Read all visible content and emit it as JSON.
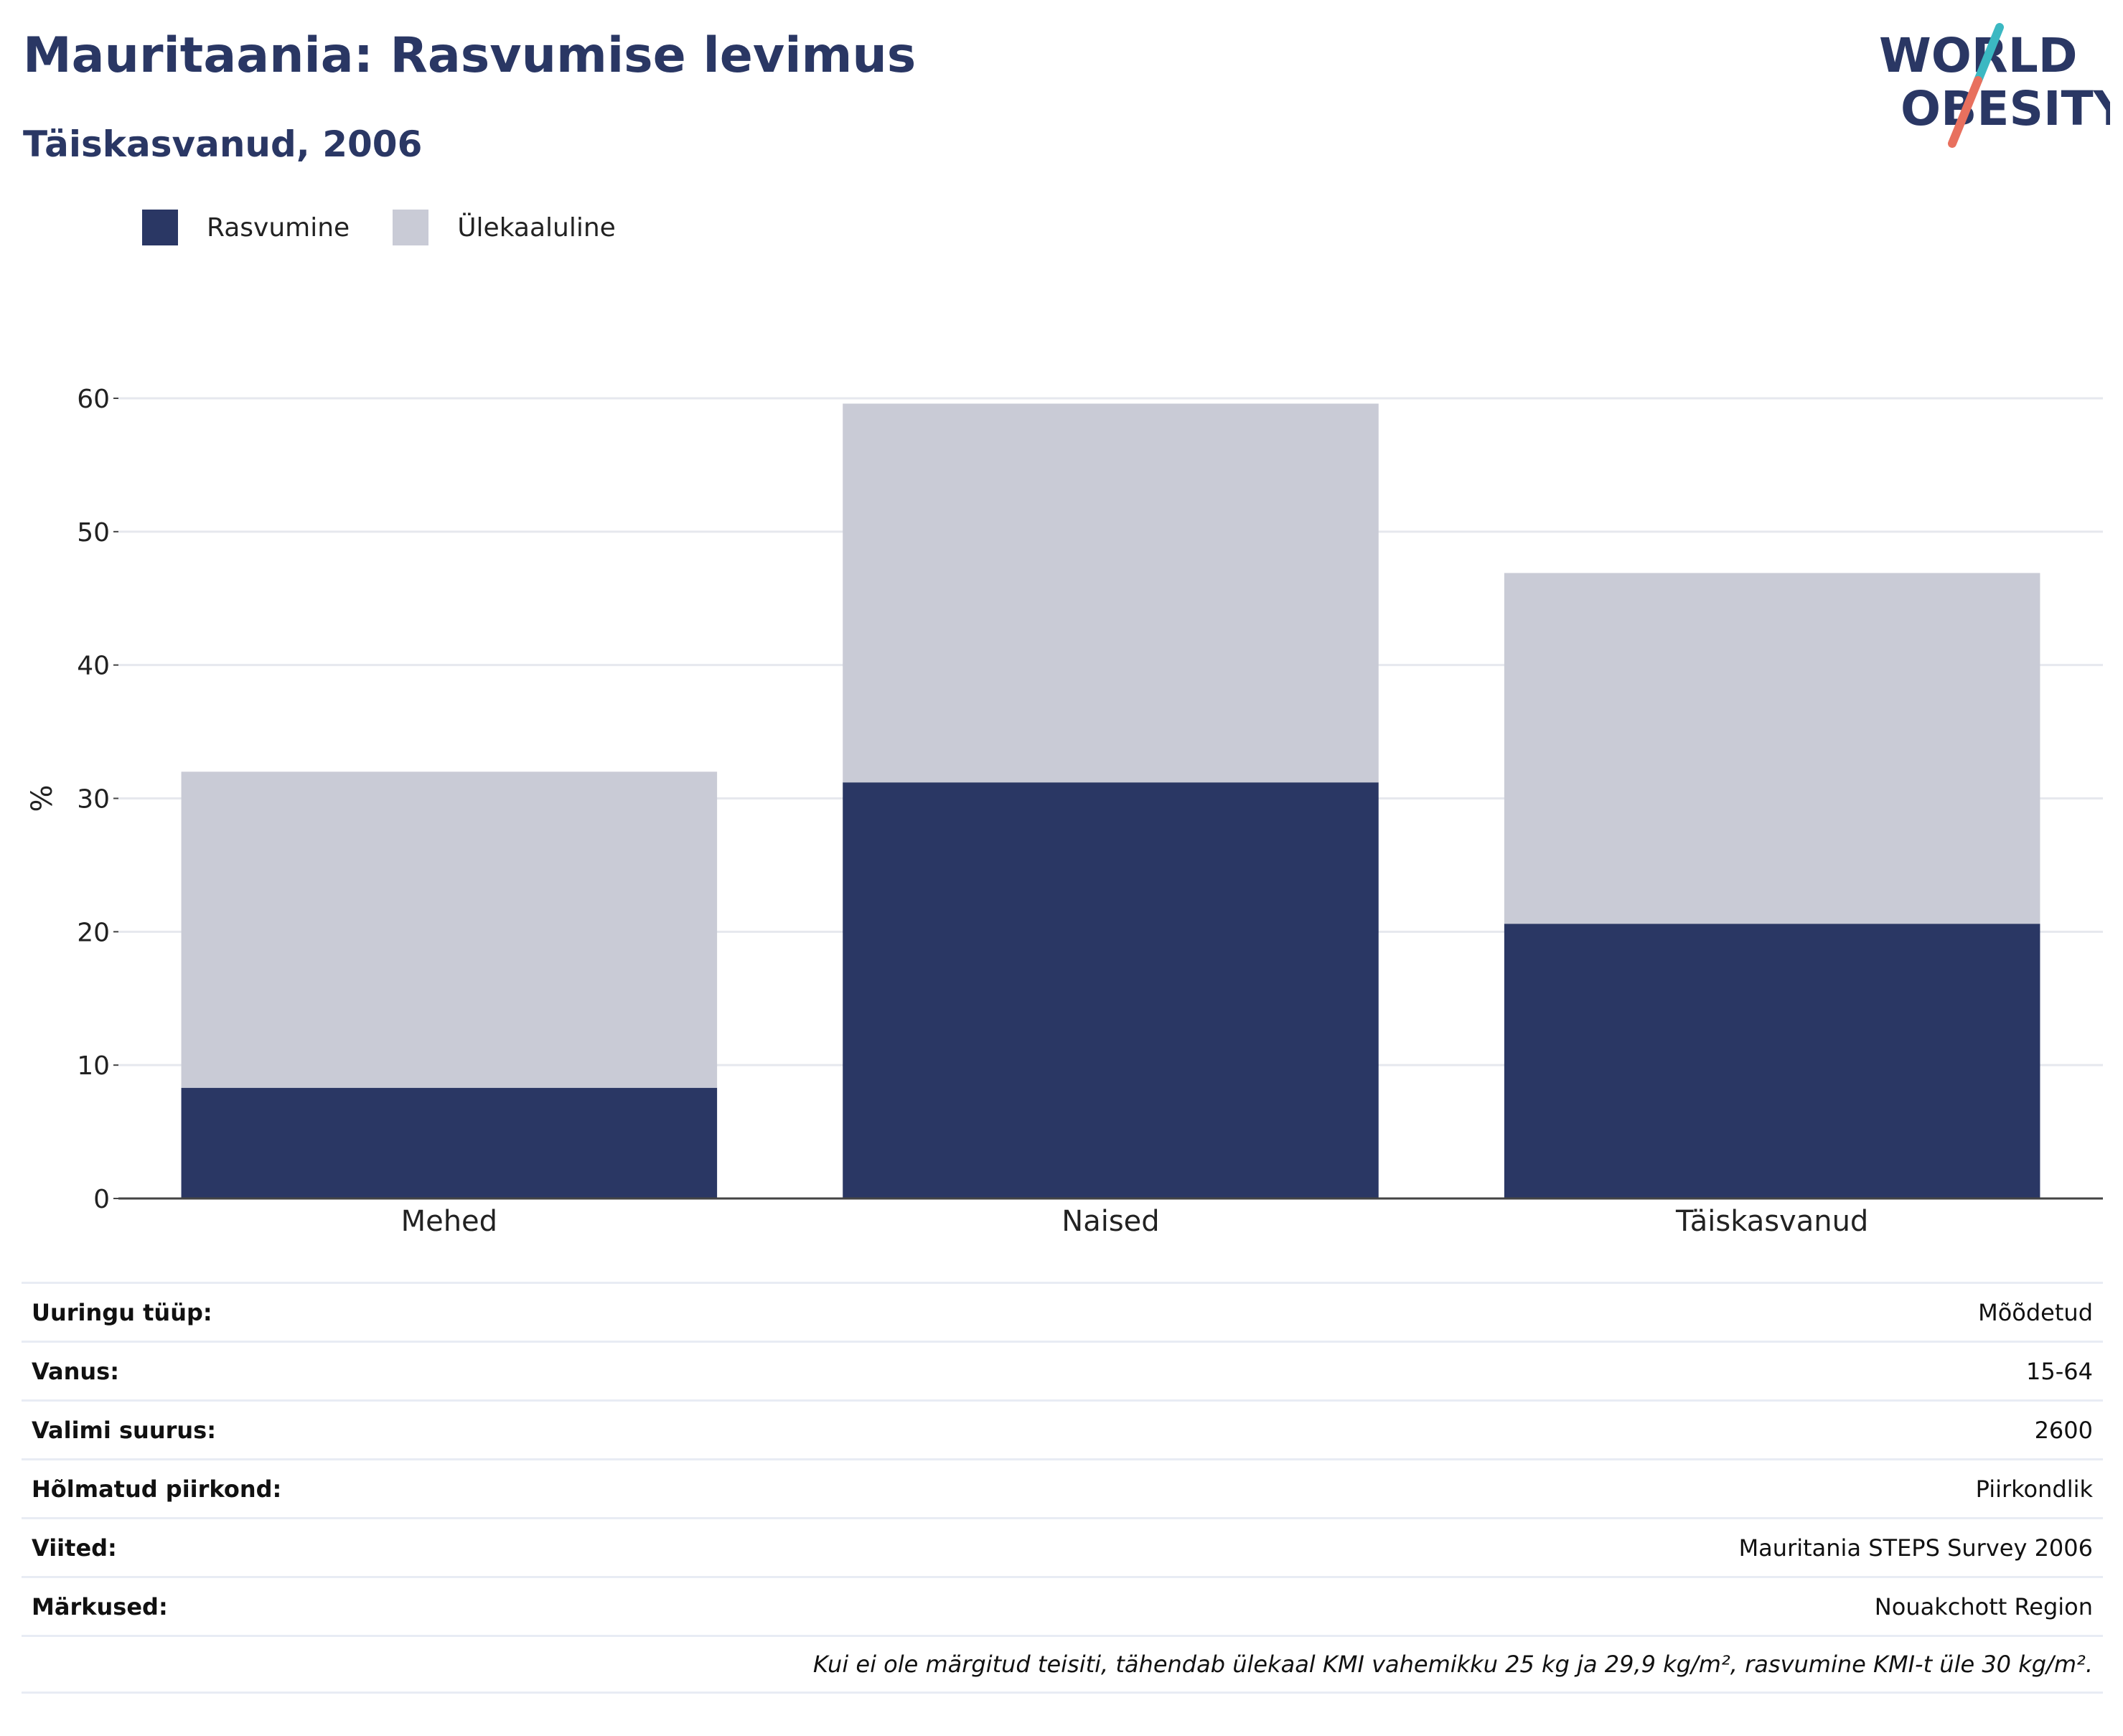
{
  "title": "Mauritaania: Rasvumise levimus",
  "subtitle": "Täiskasvanud, 2006",
  "logo": {
    "line1": "WORLD",
    "line2": "OBESITY",
    "accent_teal": "#3bb8c2",
    "accent_coral": "#e8705e",
    "color": "#2a3764"
  },
  "legend": [
    {
      "label": "Rasvumine",
      "color": "#2a3764"
    },
    {
      "label": "Ülekaaluline",
      "color": "#c9cbd6"
    }
  ],
  "chart_data": {
    "type": "bar",
    "stacked": true,
    "categories": [
      "Mehed",
      "Naised",
      "Täiskasvanud"
    ],
    "series": [
      {
        "name": "Rasvumine",
        "values": [
          8.3,
          31.2,
          20.6
        ],
        "color": "#2a3764"
      },
      {
        "name": "Ülekaaluline",
        "values": [
          23.7,
          28.4,
          26.3
        ],
        "color": "#c9cbd6"
      }
    ],
    "ylabel": "%",
    "ylim": [
      0,
      60
    ],
    "yticks": [
      0,
      10,
      20,
      30,
      40,
      50,
      60
    ],
    "grid": true
  },
  "info": [
    {
      "label": "Uuringu tüüp:",
      "value": "Mõõdetud"
    },
    {
      "label": "Vanus:",
      "value": "15-64"
    },
    {
      "label": "Valimi suurus:",
      "value": "2600"
    },
    {
      "label": "Hõlmatud piirkond:",
      "value": "Piirkondlik"
    },
    {
      "label": "Viited:",
      "value": "Mauritania STEPS Survey 2006"
    },
    {
      "label": "Märkused:",
      "value": "Nouakchott Region"
    }
  ],
  "footnote": "Kui ei ole märgitud teisiti, tähendab ülekaal KMI vahemikku 25 kg ja 29,9 kg/m², rasvumine KMI-t üle 30 kg/m²."
}
